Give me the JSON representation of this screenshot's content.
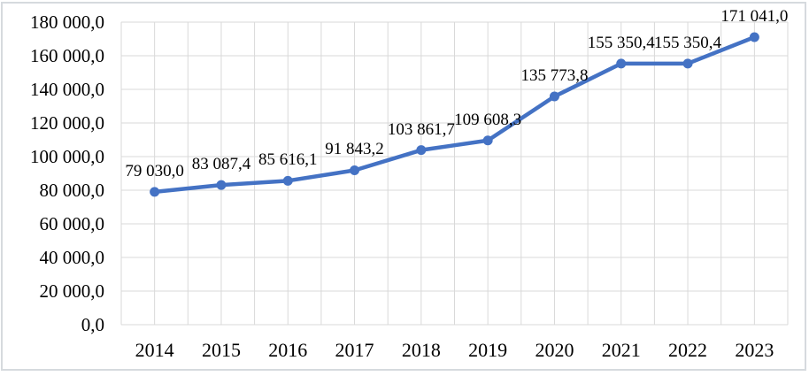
{
  "chart_data": {
    "type": "line",
    "title": "",
    "xlabel": "",
    "ylabel": "",
    "categories": [
      "2014",
      "2015",
      "2016",
      "2017",
      "2018",
      "2019",
      "2020",
      "2021",
      "2022",
      "2023"
    ],
    "series": [
      {
        "name": "",
        "values": [
          79030.0,
          83087.4,
          85616.1,
          91843.2,
          103861.7,
          109608.3,
          135773.8,
          155350.4,
          155350.4,
          171041.0
        ]
      }
    ],
    "point_labels": [
      "79 030,0",
      "83 087,4",
      "85 616,1",
      "91 843,2",
      "103 861,7",
      "109 608,3",
      "135 773,8",
      "155 350,4",
      "155 350,4",
      "171 041,0"
    ],
    "y_ticks": [
      {
        "value": 180000,
        "label": "180 000,0"
      },
      {
        "value": 160000,
        "label": "160 000,0"
      },
      {
        "value": 140000,
        "label": "140 000,0"
      },
      {
        "value": 120000,
        "label": "120 000,0"
      },
      {
        "value": 100000,
        "label": "100 000,0"
      },
      {
        "value": 80000,
        "label": "80 000,0"
      },
      {
        "value": 60000,
        "label": "60 000,0"
      },
      {
        "value": 40000,
        "label": "40 000,0"
      },
      {
        "value": 20000,
        "label": "20 000,0"
      },
      {
        "value": 0,
        "label": "0,0"
      }
    ],
    "ylim": [
      0,
      180000
    ],
    "y_step": 20000,
    "grid": true,
    "legend": "none",
    "line_color": "#4472C4",
    "marker": "circle",
    "grid_color": "#d9d9d9",
    "text_color": "#000000"
  }
}
